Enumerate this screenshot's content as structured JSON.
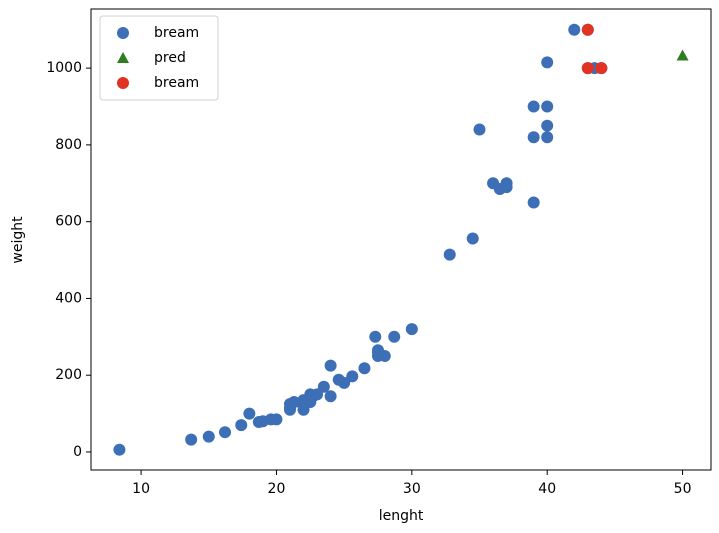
{
  "chart_data": {
    "type": "scatter",
    "xlabel": "lenght",
    "ylabel": "weight",
    "xlim": [
      6.3,
      52.1
    ],
    "ylim": [
      -47,
      1154
    ],
    "xticks": [
      10,
      20,
      30,
      40,
      50
    ],
    "yticks": [
      0,
      200,
      400,
      600,
      800,
      1000
    ],
    "legend": "upper left",
    "series": [
      {
        "name": "bream",
        "color": "#3d6fb6",
        "marker": "circle",
        "x": [
          8.4,
          13.7,
          15.0,
          16.2,
          17.4,
          18.0,
          18.7,
          19.0,
          19.6,
          20.0,
          21.0,
          21.0,
          21.0,
          21.3,
          22.0,
          22.0,
          22.0,
          22.0,
          22.0,
          22.5,
          22.5,
          22.7,
          23.0,
          23.5,
          24.0,
          24.0,
          24.6,
          25.0,
          25.6,
          26.5,
          27.3,
          27.5,
          27.5,
          27.5,
          28.0,
          28.7,
          30.0,
          32.8,
          34.5,
          35.0,
          36.5,
          36.0,
          37.0,
          37.0,
          39.0,
          39.0,
          39.0,
          40.0,
          40.0,
          40.0,
          40.0,
          42.0,
          43.0,
          43.0,
          43.5,
          44.0
        ],
        "values": [
          5.9,
          32.0,
          40.0,
          51.5,
          70.0,
          100.0,
          78.0,
          80.0,
          85.0,
          85.0,
          110.0,
          115.0,
          125.0,
          130.0,
          120.0,
          120.0,
          130.0,
          135.0,
          110.0,
          130.0,
          150.0,
          145.0,
          150.0,
          170.0,
          225.0,
          145.0,
          188.0,
          180.0,
          197.0,
          218.0,
          300.0,
          260.0,
          265.0,
          250.0,
          250.0,
          300.0,
          320.0,
          514.0,
          556.0,
          840.0,
          685.0,
          700.0,
          700.0,
          690.0,
          900.0,
          650.0,
          820.0,
          850.0,
          900.0,
          1015.0,
          820.0,
          1100.0,
          1000.0,
          1100.0,
          1000.0,
          1000.0
        ]
      },
      {
        "name": "pred",
        "color": "#2e7d1e",
        "marker": "triangle",
        "x": [
          50
        ],
        "values": [
          1033
        ]
      },
      {
        "name": "bream",
        "color": "#e03324",
        "marker": "circle",
        "x": [
          43.0,
          43.0,
          44.0
        ],
        "values": [
          1100.0,
          1000.0,
          1000.0
        ]
      }
    ]
  }
}
